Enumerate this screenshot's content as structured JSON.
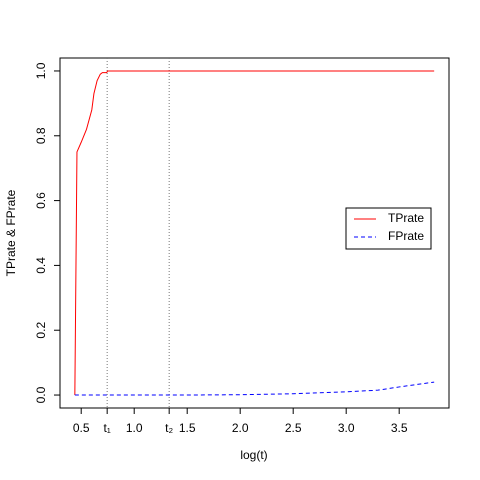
{
  "chart_data": {
    "type": "line",
    "xlabel": "log(t)",
    "ylabel": "TPrate & FPrate",
    "xlim": [
      0.3,
      3.97
    ],
    "ylim": [
      -0.04,
      1.04
    ],
    "xticks": [
      0.5,
      {
        "value": 0.745,
        "label": "t₁"
      },
      {
        "value": 1.0,
        "label": "1.0"
      },
      {
        "value": 1.33,
        "label": "t₂"
      },
      1.5,
      {
        "value": 2.0,
        "label": "2.0"
      },
      2.5,
      {
        "value": 3.0,
        "label": "3.0"
      },
      3.5
    ],
    "yticks": [
      {
        "value": 0.0,
        "label": "0.0"
      },
      0.2,
      0.4,
      0.6,
      0.8,
      {
        "value": 1.0,
        "label": "1.0"
      }
    ],
    "vlines": [
      {
        "value": 0.745,
        "label": "t₁"
      },
      {
        "value": 1.33,
        "label": "t₂"
      }
    ],
    "grid": false,
    "legend": "right",
    "series": [
      {
        "name": "TPrate",
        "color": "#ff0000",
        "dashed": false,
        "x": [
          0.44,
          0.46,
          0.5,
          0.55,
          0.6,
          0.62,
          0.65,
          0.68,
          0.7,
          0.74,
          0.75,
          3.83
        ],
        "values": [
          0,
          0.75,
          0.78,
          0.82,
          0.88,
          0.93,
          0.97,
          0.99,
          0.995,
          0.995,
          1.0,
          1.0
        ]
      },
      {
        "name": "FPrate",
        "color": "#0000ff",
        "dashed": true,
        "x": [
          0.44,
          1.5,
          2.0,
          2.5,
          3.0,
          3.3,
          3.5,
          3.83
        ],
        "values": [
          0,
          0,
          0.001,
          0.004,
          0.01,
          0.015,
          0.025,
          0.04
        ]
      }
    ]
  }
}
